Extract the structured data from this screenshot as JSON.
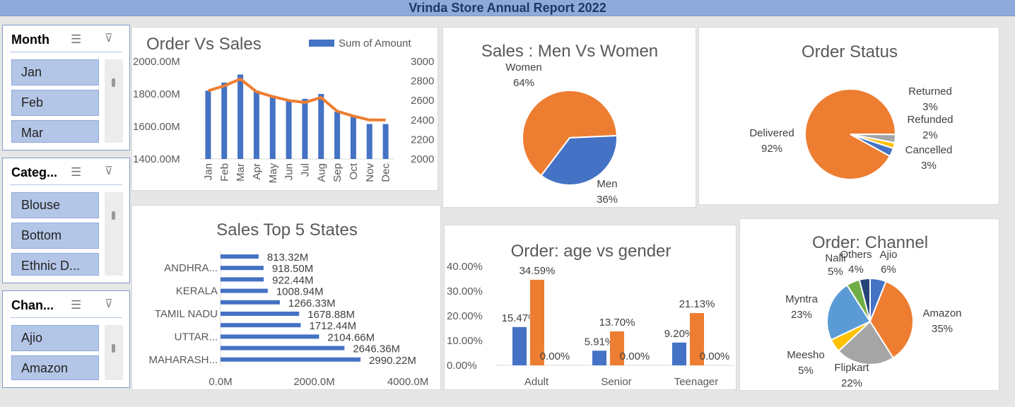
{
  "report_title": "Vrinda Store Annual Report 2022",
  "slicers": [
    {
      "title": "Month",
      "items": [
        "Jan",
        "Feb",
        "Mar"
      ]
    },
    {
      "title": "Categ...",
      "items": [
        "Blouse",
        "Bottom",
        "Ethnic D..."
      ]
    },
    {
      "title": "Chan...",
      "items": [
        "Ajio",
        "Amazon"
      ]
    }
  ],
  "icons": {
    "multi_select": "multi-select-icon",
    "clear_filter": "clear-filter-icon"
  },
  "colors": {
    "blue": "#4472c4",
    "orange": "#ed7d31",
    "gray": "#a5a5a5",
    "yellow": "#ffc000",
    "lightblue": "#5b9bd5",
    "green": "#70ad47",
    "navy": "#264478",
    "slicer_item": "#b4c6e7",
    "title_bar": "#8eaadb"
  },
  "chart_data": [
    {
      "id": "order_vs_sales",
      "type": "bar",
      "title": "Order Vs Sales",
      "legend": "Sum of Amount",
      "legend_position": "top-right",
      "categories": [
        "Jan",
        "Feb",
        "Mar",
        "Apr",
        "May",
        "Jun",
        "Jul",
        "Aug",
        "Sep",
        "Oct",
        "Nov",
        "Dec"
      ],
      "series": [
        {
          "name": "Sum of Amount",
          "axis": "left",
          "values": [
            1820,
            1870,
            1920,
            1820,
            1790,
            1760,
            1770,
            1800,
            1690,
            1660,
            1615,
            1615
          ]
        },
        {
          "axis": "right",
          "type": "line",
          "values": [
            2700,
            2750,
            2820,
            2690,
            2640,
            2600,
            2580,
            2630,
            2490,
            2440,
            2400,
            2400
          ]
        }
      ],
      "left_ticks": [
        "2000.00M",
        "1800.00M",
        "1600.00M",
        "1400.00M"
      ],
      "right_ticks": [
        "3000",
        "2800",
        "2600",
        "2400",
        "2200",
        "2000"
      ],
      "ylim_left": [
        1400,
        2000
      ],
      "ylim_right": [
        2000,
        3000
      ]
    },
    {
      "id": "sales_men_women",
      "type": "pie",
      "title": "Sales : Men Vs Women",
      "slices": [
        {
          "name": "Women",
          "label": "64%",
          "value": 64
        },
        {
          "name": "Men",
          "label": "36%",
          "value": 36
        }
      ]
    },
    {
      "id": "order_status",
      "type": "pie",
      "title": "Order Status",
      "slices": [
        {
          "name": "Delivered",
          "label": "92%",
          "value": 92
        },
        {
          "name": "Returned",
          "label": "3%",
          "value": 3
        },
        {
          "name": "Refunded",
          "label": "2%",
          "value": 2
        },
        {
          "name": "Cancelled",
          "label": "3%",
          "value": 3
        }
      ]
    },
    {
      "id": "top_states",
      "type": "bar",
      "orientation": "horizontal",
      "title": "Sales Top 5 States",
      "values": [
        813.32,
        918.5,
        922.44,
        1008.94,
        1266.33,
        1678.88,
        1712.44,
        2104.66,
        2646.36,
        2990.22
      ],
      "data_labels": [
        "813.32M",
        "918.50M",
        "922.44M",
        "1008.94M",
        "1266.33M",
        "1678.88M",
        "1712.44M",
        "2104.66M",
        "2646.36M",
        "2990.22M"
      ],
      "row_labels": [
        "",
        "ANDHRA...",
        "",
        "KERALA",
        "",
        "TAMIL NADU",
        "",
        "UTTAR...",
        "",
        "MAHARASH..."
      ],
      "x_ticks": [
        "0.0M",
        "2000.0M",
        "4000.0M"
      ],
      "xlim": [
        0,
        4000
      ]
    },
    {
      "id": "age_vs_gender",
      "type": "bar",
      "title": "Order: age vs gender",
      "categories": [
        "Adult",
        "Senior",
        "Teenager"
      ],
      "series": [
        {
          "values": [
            15.47,
            5.91,
            9.2
          ],
          "labels": [
            "15.47%",
            "5.91%",
            "9.20%"
          ]
        },
        {
          "values": [
            34.59,
            13.7,
            21.13
          ],
          "labels": [
            "34.59%",
            "13.70%",
            "21.13%"
          ]
        },
        {
          "values": [
            0,
            0,
            0
          ],
          "labels": [
            "0.00%",
            "0.00%",
            "0.00%"
          ]
        }
      ],
      "y_ticks": [
        "40.00%",
        "30.00%",
        "20.00%",
        "10.00%",
        "0.00%"
      ],
      "ylim": [
        0,
        40
      ]
    },
    {
      "id": "order_channel",
      "type": "pie",
      "title": "Order: Channel",
      "slices": [
        {
          "name": "Ajio",
          "label": "6%",
          "value": 6
        },
        {
          "name": "Amazon",
          "label": "35%",
          "value": 35
        },
        {
          "name": "Flipkart",
          "label": "22%",
          "value": 22
        },
        {
          "name": "Meesho",
          "label": "5%",
          "value": 5
        },
        {
          "name": "Myntra",
          "label": "23%",
          "value": 23
        },
        {
          "name": "Nalli",
          "label": "5%",
          "value": 5
        },
        {
          "name": "Others",
          "label": "4%",
          "value": 4
        }
      ]
    }
  ]
}
